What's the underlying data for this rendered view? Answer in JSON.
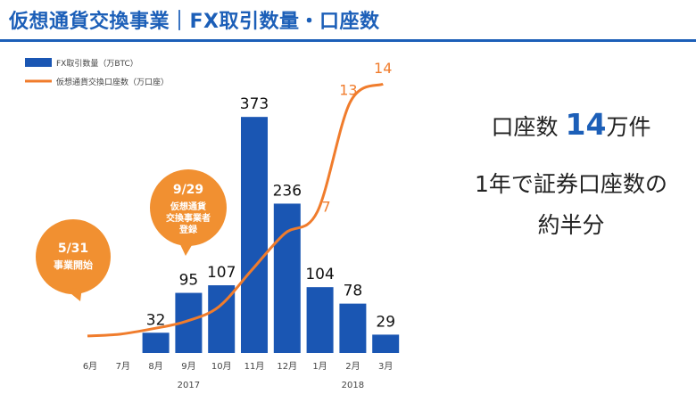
{
  "title": "仮想通貨交換事業｜FX取引数量・口座数",
  "summary": {
    "line1_prefix": "口座数",
    "line1_value": "14",
    "line1_suffix": "万件",
    "line2": "1年で証券口座数の",
    "line3": "約半分"
  },
  "callouts": [
    {
      "date": "5/31",
      "text": "事業開始"
    },
    {
      "date": "9/29",
      "text_lines": [
        "仮想通貨",
        "交換事業者",
        "登録"
      ]
    }
  ],
  "colors": {
    "bar": "#1a56b3",
    "line": "#f07c2c",
    "callout": "#f19031",
    "title": "#1c5fb8"
  },
  "chart_data": {
    "type": "bar",
    "categories": [
      "6月",
      "7月",
      "8月",
      "9月",
      "10月",
      "11月",
      "12月",
      "1月",
      "2月",
      "3月"
    ],
    "year_labels": [
      {
        "label": "2017",
        "under": "9月"
      },
      {
        "label": "2018",
        "under": "2月"
      }
    ],
    "series": [
      {
        "name": "FX取引数量（万BTC）",
        "type": "bar",
        "values": [
          null,
          null,
          32,
          95,
          107,
          373,
          236,
          104,
          78,
          29
        ],
        "labels": [
          "",
          "",
          "32",
          "95",
          "107",
          "373",
          "236",
          "104",
          "78",
          "29"
        ]
      },
      {
        "name": "仮想通貨交換口座数（万口座）",
        "type": "line",
        "values": [
          0.2,
          0.3,
          0.6,
          1.0,
          1.8,
          3.8,
          5.8,
          7,
          13,
          14
        ],
        "labels": [
          "",
          "",
          "",
          "",
          "",
          "",
          "",
          "7",
          "13",
          "14"
        ]
      }
    ],
    "ylim_bar": [
      0,
      400
    ],
    "ylim_line": [
      0,
      14.5
    ],
    "grid": false,
    "legend": "top-left"
  }
}
